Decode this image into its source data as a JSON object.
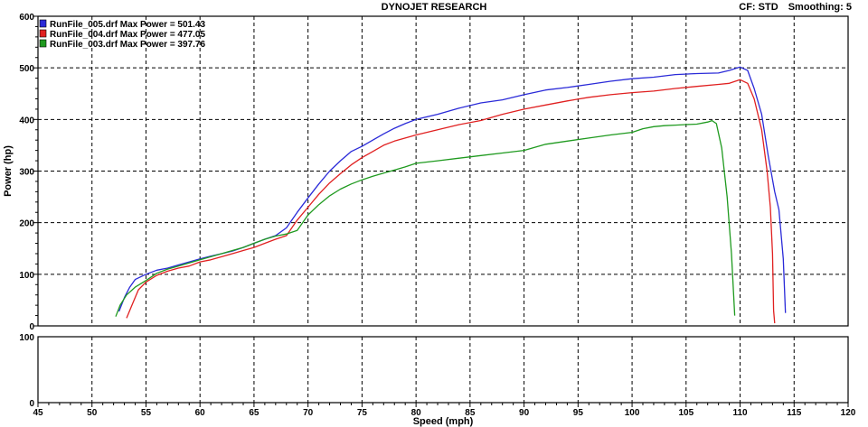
{
  "header": {
    "title": "DYNOJET RESEARCH",
    "cf": "CF: STD",
    "smoothing": "Smoothing: 5"
  },
  "colors": {
    "run005": "#2a2ad8",
    "run004": "#e02020",
    "run003": "#1f9a1f",
    "grid": "#000000",
    "frame": "#000000"
  },
  "chart_data": {
    "type": "line",
    "title": "DYNOJET RESEARCH",
    "xlabel": "Speed (mph)",
    "ylabel": "Power (hp)",
    "xlim": [
      45,
      120
    ],
    "ylim": [
      0,
      600
    ],
    "x_ticks": [
      45,
      50,
      55,
      60,
      65,
      70,
      75,
      80,
      85,
      90,
      95,
      100,
      105,
      110,
      115,
      120
    ],
    "y_ticks": [
      0,
      100,
      200,
      300,
      400,
      500,
      600
    ],
    "lower_panel": {
      "ylim": [
        0,
        100
      ],
      "y_ticks": [
        0,
        100
      ]
    },
    "legend_position": "top-left",
    "grid": true,
    "series": [
      {
        "name": "RunFile_005.drf Max Power = 501.43",
        "color_key": "run005",
        "points": [
          [
            52.5,
            28
          ],
          [
            53,
            55
          ],
          [
            53.5,
            75
          ],
          [
            54,
            90
          ],
          [
            55,
            100
          ],
          [
            56,
            108
          ],
          [
            57,
            112
          ],
          [
            58,
            118
          ],
          [
            59,
            124
          ],
          [
            60,
            130
          ],
          [
            61,
            135
          ],
          [
            62,
            140
          ],
          [
            63,
            145
          ],
          [
            64,
            152
          ],
          [
            65,
            160
          ],
          [
            66,
            168
          ],
          [
            67,
            175
          ],
          [
            68,
            190
          ],
          [
            69,
            220
          ],
          [
            70,
            248
          ],
          [
            71,
            275
          ],
          [
            72,
            300
          ],
          [
            73,
            320
          ],
          [
            74,
            338
          ],
          [
            75,
            348
          ],
          [
            76,
            360
          ],
          [
            77,
            372
          ],
          [
            78,
            383
          ],
          [
            79,
            392
          ],
          [
            80,
            400
          ],
          [
            82,
            410
          ],
          [
            84,
            422
          ],
          [
            86,
            432
          ],
          [
            88,
            438
          ],
          [
            90,
            448
          ],
          [
            92,
            457
          ],
          [
            94,
            462
          ],
          [
            96,
            468
          ],
          [
            98,
            474
          ],
          [
            100,
            479
          ],
          [
            102,
            482
          ],
          [
            104,
            487
          ],
          [
            106,
            489
          ],
          [
            108,
            490
          ],
          [
            109,
            495
          ],
          [
            110,
            501.43
          ],
          [
            110.7,
            495
          ],
          [
            111.3,
            460
          ],
          [
            112,
            410
          ],
          [
            112.6,
            330
          ],
          [
            113.2,
            260
          ],
          [
            113.6,
            225
          ],
          [
            114,
            130
          ],
          [
            114.2,
            25
          ]
        ]
      },
      {
        "name": "RunFile_004.drf Max Power = 477.05",
        "color_key": "run004",
        "points": [
          [
            53.2,
            15
          ],
          [
            53.7,
            40
          ],
          [
            54.3,
            70
          ],
          [
            55,
            85
          ],
          [
            56,
            98
          ],
          [
            57,
            106
          ],
          [
            58,
            112
          ],
          [
            59,
            116
          ],
          [
            60,
            124
          ],
          [
            61,
            128
          ],
          [
            62,
            134
          ],
          [
            63,
            140
          ],
          [
            64,
            146
          ],
          [
            65,
            152
          ],
          [
            66,
            160
          ],
          [
            67,
            168
          ],
          [
            68,
            175
          ],
          [
            69,
            205
          ],
          [
            70,
            230
          ],
          [
            71,
            255
          ],
          [
            72,
            277
          ],
          [
            73,
            295
          ],
          [
            74,
            312
          ],
          [
            75,
            326
          ],
          [
            76,
            338
          ],
          [
            77,
            350
          ],
          [
            78,
            358
          ],
          [
            79,
            364
          ],
          [
            80,
            370
          ],
          [
            82,
            380
          ],
          [
            84,
            390
          ],
          [
            86,
            398
          ],
          [
            88,
            410
          ],
          [
            90,
            420
          ],
          [
            92,
            428
          ],
          [
            94,
            436
          ],
          [
            96,
            443
          ],
          [
            98,
            448
          ],
          [
            100,
            452
          ],
          [
            102,
            455
          ],
          [
            104,
            460
          ],
          [
            106,
            464
          ],
          [
            108,
            468
          ],
          [
            109,
            470
          ],
          [
            110,
            477.05
          ],
          [
            110.7,
            470
          ],
          [
            111.3,
            440
          ],
          [
            112,
            380
          ],
          [
            112.5,
            300
          ],
          [
            112.8,
            230
          ],
          [
            113,
            140
          ],
          [
            113.1,
            30
          ],
          [
            113.2,
            5
          ]
        ]
      },
      {
        "name": "RunFile_003.drf Max Power = 397.76",
        "color_key": "run003",
        "points": [
          [
            52.2,
            18
          ],
          [
            52.6,
            40
          ],
          [
            53.2,
            60
          ],
          [
            54,
            75
          ],
          [
            55,
            88
          ],
          [
            56,
            102
          ],
          [
            57,
            110
          ],
          [
            58,
            116
          ],
          [
            59,
            122
          ],
          [
            60,
            128
          ],
          [
            61,
            134
          ],
          [
            62,
            140
          ],
          [
            63,
            146
          ],
          [
            64,
            152
          ],
          [
            65,
            160
          ],
          [
            66,
            168
          ],
          [
            67,
            174
          ],
          [
            68,
            178
          ],
          [
            69,
            185
          ],
          [
            70,
            215
          ],
          [
            71,
            235
          ],
          [
            72,
            252
          ],
          [
            73,
            265
          ],
          [
            74,
            275
          ],
          [
            75,
            283
          ],
          [
            76,
            290
          ],
          [
            77,
            296
          ],
          [
            78,
            302
          ],
          [
            79,
            308
          ],
          [
            80,
            315
          ],
          [
            82,
            320
          ],
          [
            84,
            325
          ],
          [
            86,
            330
          ],
          [
            88,
            335
          ],
          [
            90,
            340
          ],
          [
            92,
            352
          ],
          [
            94,
            358
          ],
          [
            96,
            364
          ],
          [
            98,
            370
          ],
          [
            100,
            375
          ],
          [
            101,
            382
          ],
          [
            102,
            386
          ],
          [
            103,
            388
          ],
          [
            104,
            389
          ],
          [
            105,
            390
          ],
          [
            106,
            391
          ],
          [
            107,
            395
          ],
          [
            107.4,
            397.76
          ],
          [
            107.8,
            392
          ],
          [
            108.3,
            345
          ],
          [
            108.8,
            250
          ],
          [
            109.2,
            140
          ],
          [
            109.4,
            60
          ],
          [
            109.5,
            20
          ]
        ]
      }
    ]
  }
}
